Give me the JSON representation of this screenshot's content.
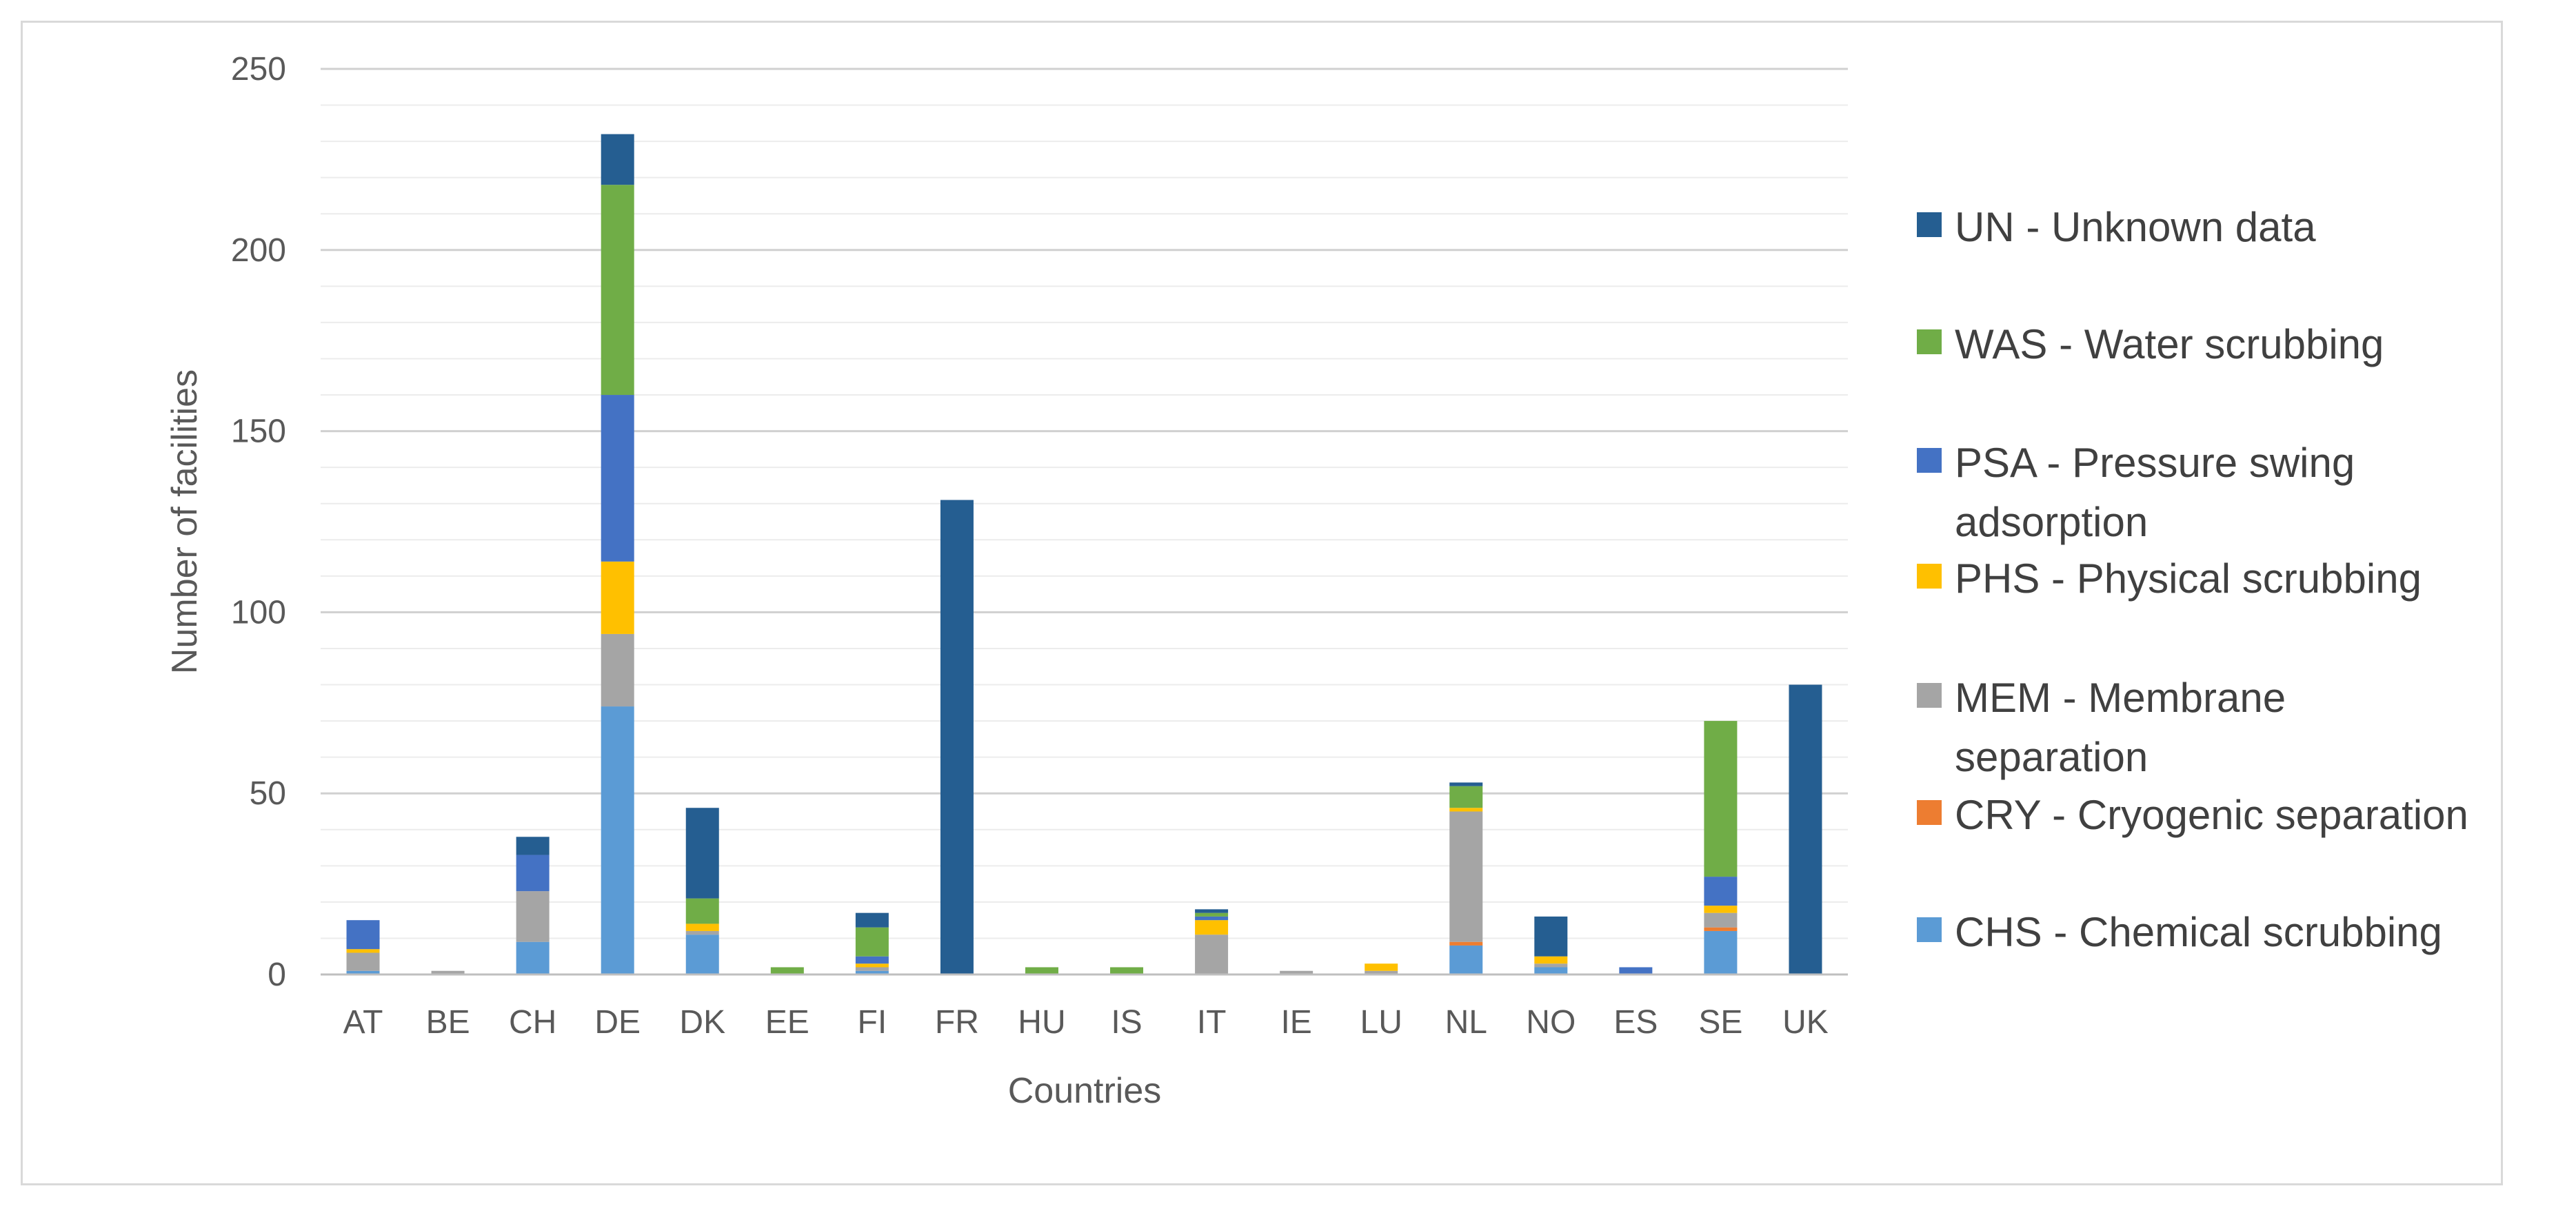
{
  "chart_data": {
    "type": "bar",
    "stacked": true,
    "title": "",
    "xlabel": "Countries",
    "ylabel": "Number of facilities",
    "ylim": [
      0,
      250
    ],
    "yticks": [
      0,
      50,
      100,
      150,
      200,
      250
    ],
    "grid": true,
    "legend_position": "right",
    "categories": [
      "AT",
      "BE",
      "CH",
      "DE",
      "DK",
      "EE",
      "FI",
      "FR",
      "HU",
      "IS",
      "IT",
      "IE",
      "LU",
      "NL",
      "NO",
      "ES",
      "SE",
      "UK"
    ],
    "series": [
      {
        "name": "CHS - Chemical scrubbing",
        "color": "#5B9BD5",
        "values": [
          1,
          0,
          9,
          74,
          11,
          0,
          1,
          0,
          0,
          0,
          0,
          0,
          0,
          8,
          2,
          0,
          12,
          0
        ]
      },
      {
        "name": "CRY - Cryogenic separation",
        "color": "#ED7D31",
        "values": [
          0,
          0,
          0,
          0,
          0,
          0,
          0,
          0,
          0,
          0,
          0,
          0,
          0,
          1,
          0,
          0,
          1,
          0
        ]
      },
      {
        "name": "MEM - Membrane separation",
        "color": "#A5A5A5",
        "values": [
          5,
          1,
          14,
          20,
          1,
          0,
          1,
          0,
          0,
          0,
          11,
          1,
          1,
          36,
          1,
          0,
          4,
          0
        ]
      },
      {
        "name": "PHS - Physical scrubbing",
        "color": "#FFC000",
        "values": [
          1,
          0,
          0,
          20,
          2,
          0,
          1,
          0,
          0,
          0,
          4,
          0,
          2,
          1,
          2,
          0,
          2,
          0
        ]
      },
      {
        "name": "PSA - Pressure swing adsorption",
        "color": "#4472C4",
        "values": [
          8,
          0,
          10,
          46,
          0,
          0,
          2,
          0,
          0,
          0,
          1,
          0,
          0,
          0,
          0,
          2,
          8,
          0
        ]
      },
      {
        "name": "WAS - Water scrubbing",
        "color": "#70AD47",
        "values": [
          0,
          0,
          0,
          58,
          7,
          2,
          8,
          0,
          2,
          2,
          1,
          0,
          0,
          6,
          0,
          0,
          43,
          0
        ]
      },
      {
        "name": "UN - Unknown data",
        "color": "#255E91",
        "values": [
          0,
          0,
          5,
          14,
          25,
          0,
          4,
          131,
          0,
          0,
          1,
          0,
          0,
          1,
          11,
          0,
          0,
          80
        ]
      }
    ],
    "legend_order": [
      {
        "lines": [
          "UN - Unknown data"
        ],
        "series": 6
      },
      {
        "lines": [
          "WAS - Water scrubbing"
        ],
        "series": 5
      },
      {
        "lines": [
          "PSA - Pressure swing",
          "adsorption"
        ],
        "series": 4
      },
      {
        "lines": [
          "PHS - Physical scrubbing"
        ],
        "series": 3
      },
      {
        "lines": [
          "MEM - Membrane",
          "separation"
        ],
        "series": 2
      },
      {
        "lines": [
          "CRY - Cryogenic separation"
        ],
        "series": 1
      },
      {
        "lines": [
          "CHS - Chemical scrubbing"
        ],
        "series": 0
      }
    ],
    "colors": {
      "gridline": "#d9d9d9",
      "axis": "#bfbfbf",
      "text": "#595959"
    }
  }
}
